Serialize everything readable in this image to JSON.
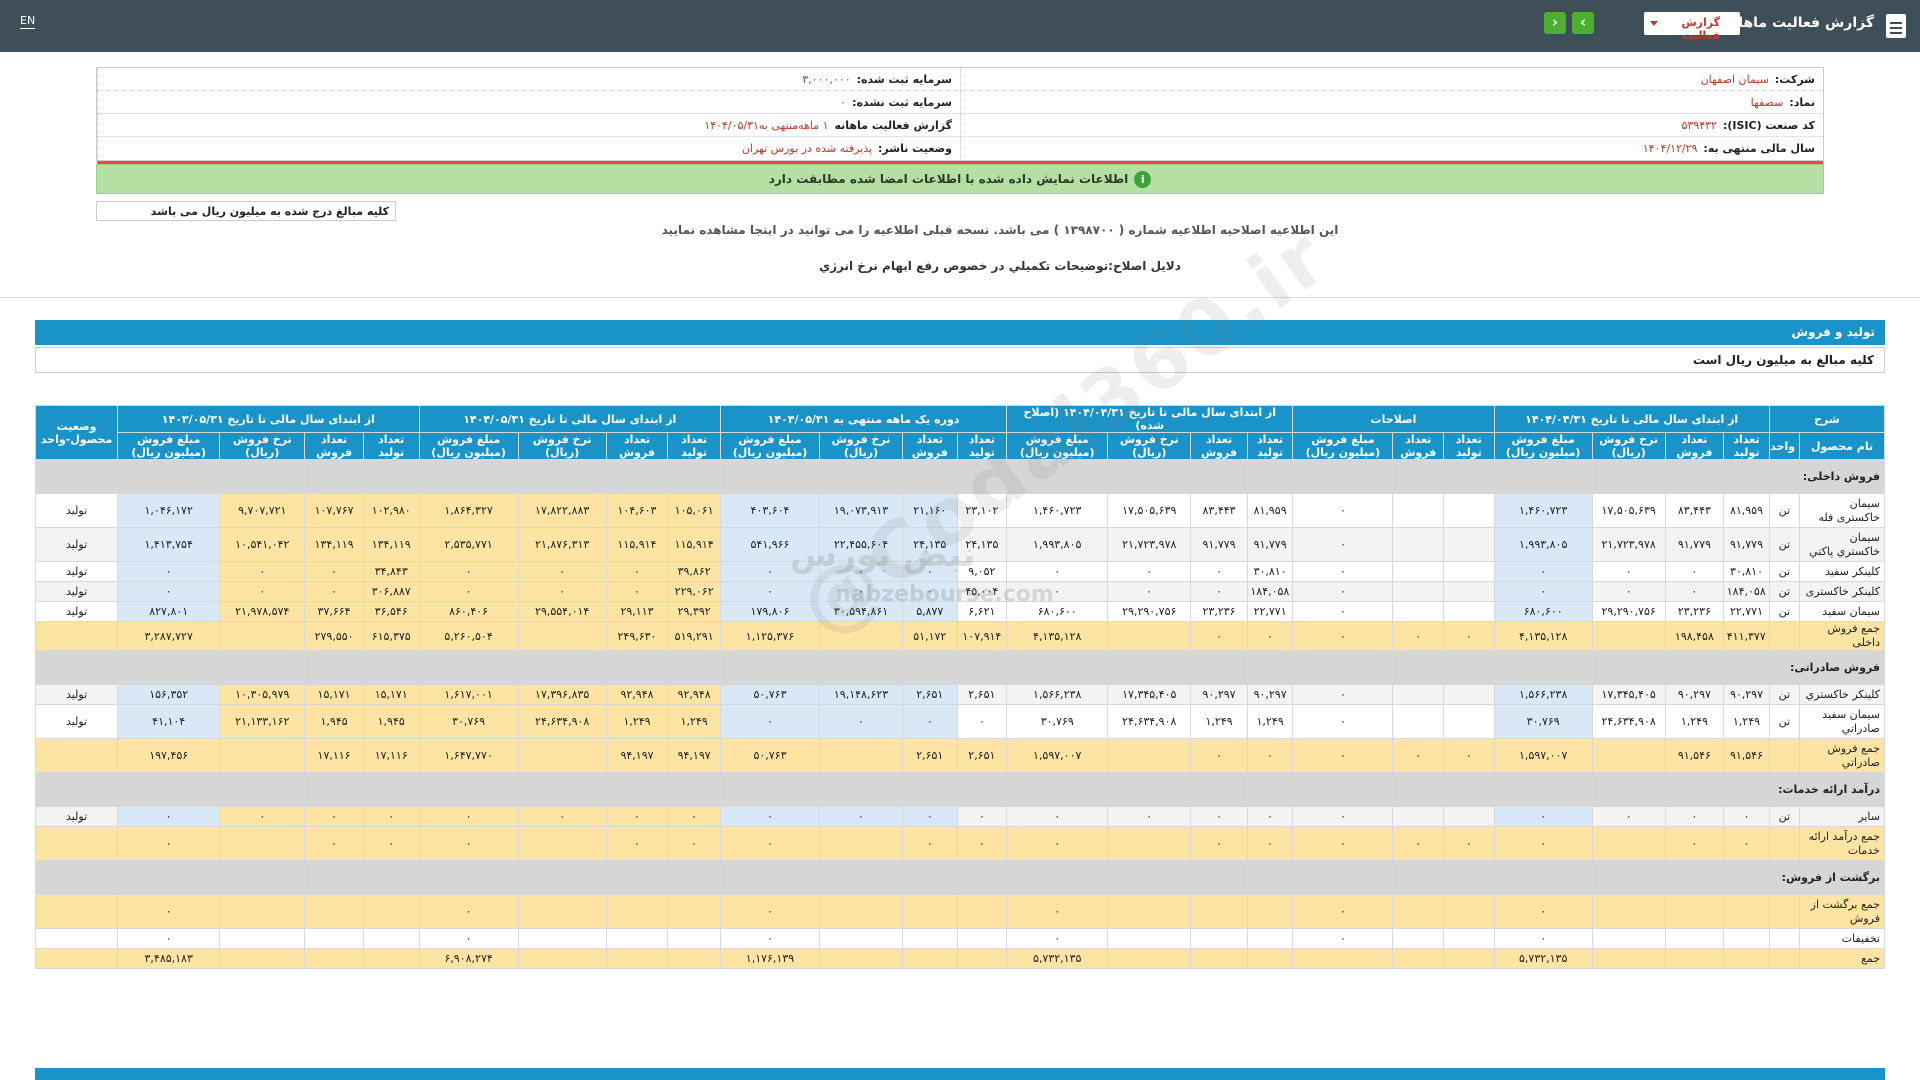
{
  "topbar": {
    "title": "گزارش فعالیت ماهانه",
    "dropdown": "گزارش فعالیت",
    "next": "›",
    "prev": "‹",
    "lang": "EN"
  },
  "info": {
    "company_label": "شرکت:",
    "company": "سیمان اصفهان",
    "registered_label": "سرمایه ثبت شده:",
    "registered": "۳,۰۰۰,۰۰۰",
    "symbol_label": "نماد:",
    "symbol": "سصفها",
    "unregistered_label": "سرمایه ثبت نشده:",
    "unregistered": "۰",
    "isic_label": "کد صنعت (ISIC):",
    "isic": "۵۳۹۴۳۲",
    "report_label": "گزارش فعالیت ماهانه",
    "report": "۱ ماهه‌منتهی به۱۴۰۴/۰۵/۳۱",
    "fiscal_label": "سال مالی منتهی به:",
    "fiscal": "۱۴۰۴/۱۲/۲۹",
    "status_label": "وضعیت ناشر:",
    "status": "پذیرفته شده در بورس تهران"
  },
  "alert": "اطلاعات نمایش داده شده با اطلاعات امضا شده مطابقت دارد",
  "note_amounts": "کلیه مبالغ درج شده به میلیون ریال می باشد",
  "correction_msg": "این اطلاعیه اصلاحیه اطلاعیه شماره ( ۱۳۹۸۷۰۰ ) می باشد. نسخه قبلی اطلاعیه را می توانید در اینجا مشاهده نمایید",
  "correction_reason": "دلایل اصلاح:توضیحات تکمیلي در خصوص رفع ابهام نرخ انرژي",
  "section": {
    "title": "تولید و فروش",
    "note": "کلیه مبالغ به میلیون ریال است"
  },
  "table": {
    "group_headers": [
      "شرح",
      "از ابتدای سال مالی تا تاریخ ۱۴۰۴/۰۴/۳۱",
      "اصلاحات",
      "از ابتدای سال مالی تا تاریخ ۱۴۰۴/۰۴/۳۱ (اصلاح شده)",
      "دوره یک ماهه منتهی به ۱۴۰۴/۰۵/۳۱",
      "از ابتدای سال مالی تا تاریخ ۱۴۰۴/۰۵/۳۱",
      "از ابتدای سال مالی تا تاریخ ۱۴۰۳/۰۵/۳۱",
      "وضعیت محصول-واحد"
    ],
    "sub_headers": [
      "نام محصول",
      "واحد",
      "تعداد تولید",
      "تعداد فروش",
      "نرخ فروش (ریال)",
      "مبلغ فروش (میلیون ریال)",
      "تعداد تولید",
      "تعداد فروش",
      "مبلغ فروش (میلیون ریال)",
      "تعداد تولید",
      "تعداد فروش",
      "نرخ فروش (ریال)",
      "مبلغ فروش (میلیون ریال)",
      "تعداد تولید",
      "تعداد فروش",
      "نرخ فروش (ریال)",
      "مبلغ فروش (میلیون ریال)",
      "تعداد تولید",
      "تعداد فروش",
      "نرخ فروش (ریال)",
      "مبلغ فروش (میلیون ریال)",
      "تعداد تولید",
      "تعداد فروش",
      "نرخ فروش (ریال)",
      "مبلغ فروش (میلیون ریال)"
    ],
    "rows": [
      {
        "type": "cat",
        "name": "فروش داخلی:"
      },
      {
        "type": "data",
        "name": "سیمان خاکستری فله",
        "unit": "تن",
        "cells": [
          "۸۱,۹۵۹",
          "۸۳,۴۴۳",
          "۱۷,۵۰۵,۶۳۹",
          "۱,۴۶۰,۷۲۳",
          "",
          "",
          "۰",
          "۸۱,۹۵۹",
          "۸۳,۴۴۳",
          "۱۷,۵۰۵,۶۳۹",
          "۱,۴۶۰,۷۲۳",
          "۲۳,۱۰۲",
          "۲۱,۱۶۰",
          "۱۹,۰۷۳,۹۱۳",
          "۴۰۳,۶۰۴",
          "۱۰۵,۰۶۱",
          "۱۰۴,۶۰۳",
          "۱۷,۸۲۲,۸۸۳",
          "۱,۸۶۴,۳۲۷",
          "۱۰۲,۹۸۰",
          "۱۰۷,۷۶۷",
          "۹,۷۰۷,۷۲۱",
          "۱,۰۴۶,۱۷۲"
        ],
        "status": "تولید"
      },
      {
        "type": "data",
        "name": "سیمان خاکستري پاکتي",
        "unit": "تن",
        "cells": [
          "۹۱,۷۷۹",
          "۹۱,۷۷۹",
          "۲۱,۷۲۳,۹۷۸",
          "۱,۹۹۳,۸۰۵",
          "",
          "",
          "۰",
          "۹۱,۷۷۹",
          "۹۱,۷۷۹",
          "۲۱,۷۲۳,۹۷۸",
          "۱,۹۹۳,۸۰۵",
          "۲۴,۱۳۵",
          "۲۴,۱۳۵",
          "۲۲,۴۵۵,۶۰۴",
          "۵۴۱,۹۶۶",
          "۱۱۵,۹۱۴",
          "۱۱۵,۹۱۴",
          "۲۱,۸۷۶,۳۱۳",
          "۲,۵۳۵,۷۷۱",
          "۱۳۴,۱۱۹",
          "۱۳۴,۱۱۹",
          "۱۰,۵۴۱,۰۴۲",
          "۱,۴۱۳,۷۵۴"
        ],
        "status": "تولید"
      },
      {
        "type": "data",
        "name": "کلینکر سفید",
        "unit": "تن",
        "cells": [
          "۳۰,۸۱۰",
          "۰",
          "۰",
          "۰",
          "",
          "",
          "۰",
          "۳۰,۸۱۰",
          "۰",
          "۰",
          "۰",
          "۹,۰۵۲",
          "۰",
          "۰",
          "۰",
          "۳۹,۸۶۲",
          "۰",
          "۰",
          "۰",
          "۳۴,۸۴۳",
          "۰",
          "۰",
          "۰"
        ],
        "status": "تولید"
      },
      {
        "type": "data",
        "name": "کلینکر خاکستری",
        "unit": "تن",
        "cells": [
          "۱۸۴,۰۵۸",
          "۰",
          "۰",
          "۰",
          "",
          "",
          "۰",
          "۱۸۴,۰۵۸",
          "۰",
          "۰",
          "۰",
          "۴۵,۰۰۴",
          "۰",
          "۰",
          "۰",
          "۲۲۹,۰۶۲",
          "۰",
          "۰",
          "۰",
          "۳۰۶,۸۸۷",
          "۰",
          "۰",
          "۰"
        ],
        "status": "تولید"
      },
      {
        "type": "data",
        "name": "سیمان سفید",
        "unit": "تن",
        "cells": [
          "۲۲,۷۷۱",
          "۲۳,۲۳۶",
          "۲۹,۲۹۰,۷۵۶",
          "۶۸۰,۶۰۰",
          "",
          "",
          "۰",
          "۲۲,۷۷۱",
          "۲۳,۲۳۶",
          "۲۹,۲۹۰,۷۵۶",
          "۶۸۰,۶۰۰",
          "۶,۶۲۱",
          "۵,۸۷۷",
          "۳۰,۵۹۴,۸۶۱",
          "۱۷۹,۸۰۶",
          "۲۹,۳۹۲",
          "۲۹,۱۱۳",
          "۲۹,۵۵۴,۰۱۴",
          "۸۶۰,۴۰۶",
          "۳۶,۵۴۶",
          "۳۷,۶۶۴",
          "۲۱,۹۷۸,۵۷۴",
          "۸۲۷,۸۰۱"
        ],
        "status": "تولید"
      },
      {
        "type": "tot",
        "name": "جمع فروش داخلی",
        "unit": "",
        "cells": [
          "۴۱۱,۳۷۷",
          "۱۹۸,۴۵۸",
          "",
          "۴,۱۳۵,۱۲۸",
          "۰",
          "۰",
          "۰",
          "۰",
          "۰",
          "",
          "۴,۱۳۵,۱۲۸",
          "۱۰۷,۹۱۴",
          "۵۱,۱۷۲",
          "",
          "۱,۱۲۵,۳۷۶",
          "۵۱۹,۲۹۱",
          "۲۴۹,۶۳۰",
          "",
          "۵,۲۶۰,۵۰۴",
          "۶۱۵,۳۷۵",
          "۲۷۹,۵۵۰",
          "",
          "۳,۲۸۷,۷۲۷"
        ],
        "status": ""
      },
      {
        "type": "cat",
        "name": "فروش صادراتی:"
      },
      {
        "type": "data",
        "name": "کلینکر خاکستري",
        "unit": "تن",
        "cells": [
          "۹۰,۲۹۷",
          "۹۰,۲۹۷",
          "۱۷,۳۴۵,۴۰۵",
          "۱,۵۶۶,۲۳۸",
          "",
          "",
          "۰",
          "۹۰,۲۹۷",
          "۹۰,۲۹۷",
          "۱۷,۳۴۵,۴۰۵",
          "۱,۵۶۶,۲۳۸",
          "۲,۶۵۱",
          "۲,۶۵۱",
          "۱۹,۱۴۸,۶۲۳",
          "۵۰,۷۶۳",
          "۹۲,۹۴۸",
          "۹۲,۹۴۸",
          "۱۷,۳۹۶,۸۳۵",
          "۱,۶۱۷,۰۰۱",
          "۱۵,۱۷۱",
          "۱۵,۱۷۱",
          "۱۰,۳۰۵,۹۷۹",
          "۱۵۶,۳۵۲"
        ],
        "status": "تولید"
      },
      {
        "type": "data",
        "name": "سیمان سفید صادراتي",
        "unit": "تن",
        "cells": [
          "۱,۲۴۹",
          "۱,۲۴۹",
          "۲۴,۶۳۴,۹۰۸",
          "۳۰,۷۶۹",
          "",
          "",
          "۰",
          "۱,۲۴۹",
          "۱,۲۴۹",
          "۲۴,۶۳۴,۹۰۸",
          "۳۰,۷۶۹",
          "۰",
          "۰",
          "۰",
          "۰",
          "۱,۲۴۹",
          "۱,۲۴۹",
          "۲۴,۶۳۴,۹۰۸",
          "۳۰,۷۶۹",
          "۱,۹۴۵",
          "۱,۹۴۵",
          "۲۱,۱۳۳,۱۶۲",
          "۴۱,۱۰۴"
        ],
        "status": "تولید"
      },
      {
        "type": "tot",
        "name": "جمع فروش صادراتي",
        "unit": "",
        "cells": [
          "۹۱,۵۴۶",
          "۹۱,۵۴۶",
          "",
          "۱,۵۹۷,۰۰۷",
          "۰",
          "۰",
          "۰",
          "۰",
          "۰",
          "",
          "۱,۵۹۷,۰۰۷",
          "۲,۶۵۱",
          "۲,۶۵۱",
          "",
          "۵۰,۷۶۳",
          "۹۴,۱۹۷",
          "۹۴,۱۹۷",
          "",
          "۱,۶۴۷,۷۷۰",
          "۱۷,۱۱۶",
          "۱۷,۱۱۶",
          "",
          "۱۹۷,۴۵۶"
        ],
        "status": ""
      },
      {
        "type": "cat",
        "name": "درآمد ارائه خدمات:"
      },
      {
        "type": "data",
        "name": "سایر",
        "unit": "تن",
        "cells": [
          "۰",
          "۰",
          "۰",
          "۰",
          "",
          "",
          "۰",
          "۰",
          "۰",
          "۰",
          "۰",
          "۰",
          "۰",
          "۰",
          "۰",
          "۰",
          "۰",
          "۰",
          "۰",
          "۰",
          "۰",
          "۰",
          "۰"
        ],
        "status": "تولید"
      },
      {
        "type": "tot",
        "name": "جمع درآمد ارائه خدمات",
        "unit": "",
        "cells": [
          "۰",
          "۰",
          "",
          "۰",
          "۰",
          "۰",
          "۰",
          "۰",
          "۰",
          "",
          "۰",
          "۰",
          "۰",
          "",
          "۰",
          "۰",
          "۰",
          "",
          "۰",
          "۰",
          "۰",
          "",
          "۰"
        ],
        "status": ""
      },
      {
        "type": "cat",
        "name": "برگشت از فروش:"
      },
      {
        "type": "tot",
        "name": "جمع برگشت از فروش",
        "unit": "",
        "cells": [
          "",
          "",
          "",
          "۰",
          "",
          "",
          "۰",
          "",
          "",
          "",
          "۰",
          "",
          "",
          "",
          "۰",
          "",
          "",
          "",
          "۰",
          "",
          "",
          "",
          "۰"
        ],
        "status": ""
      },
      {
        "type": "disc",
        "name": "تخفیفات",
        "unit": "",
        "cells": [
          "",
          "",
          "",
          "۰",
          "",
          "",
          "۰",
          "",
          "",
          "",
          "۰",
          "",
          "",
          "",
          "۰",
          "",
          "",
          "",
          "۰",
          "",
          "",
          "",
          "۰"
        ],
        "status": ""
      },
      {
        "type": "tot",
        "name": "جمع",
        "unit": "",
        "cells": [
          "",
          "",
          "",
          "۵,۷۳۲,۱۳۵",
          "",
          "",
          "",
          "",
          "",
          "",
          "۵,۷۳۲,۱۳۵",
          "",
          "",
          "",
          "۱,۱۷۶,۱۳۹",
          "",
          "",
          "",
          "۶,۹۰۸,۲۷۴",
          "",
          "",
          "",
          "۳,۴۸۵,۱۸۳"
        ],
        "status": ""
      }
    ]
  },
  "watermark": {
    "brand": "@Codal360.ir",
    "site_fa": "نبض بورس",
    "site": "nabzebourse.com"
  },
  "colors": {
    "header_bar": "#3f4f5a",
    "table_header": "#1a94c8",
    "alert_bg": "#b5dfa3",
    "total_row": "#fde4a3",
    "category_row": "#d6d6d6",
    "blue_cell": "#d8e8f7"
  }
}
